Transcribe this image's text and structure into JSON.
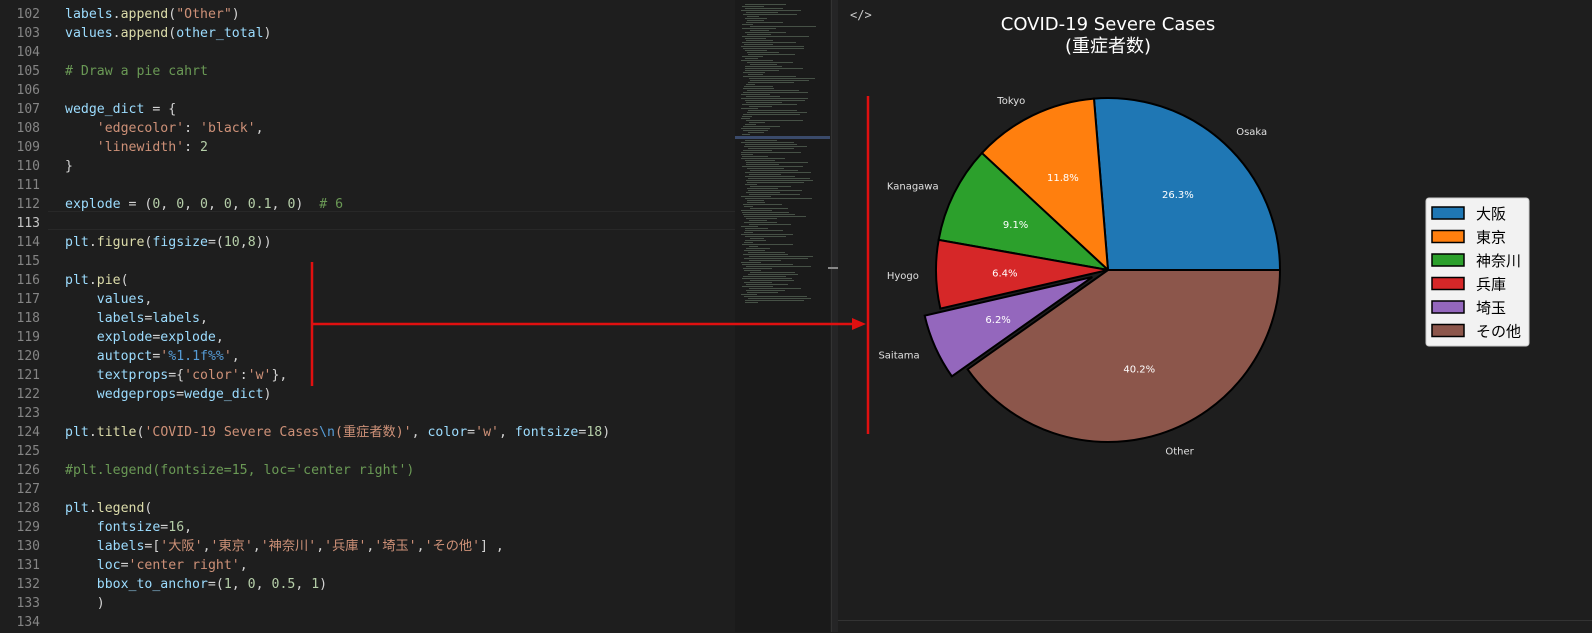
{
  "editor": {
    "lines": [
      {
        "num": "102",
        "tokens": [
          [
            "vr",
            "labels"
          ],
          [
            "pn",
            "."
          ],
          [
            "fn",
            "append"
          ],
          [
            "pn",
            "("
          ],
          [
            "st",
            "\"Other\""
          ],
          [
            "pn",
            ")"
          ]
        ]
      },
      {
        "num": "103",
        "tokens": [
          [
            "vr",
            "values"
          ],
          [
            "pn",
            "."
          ],
          [
            "fn",
            "append"
          ],
          [
            "pn",
            "("
          ],
          [
            "vr",
            "other_total"
          ],
          [
            "pn",
            ")"
          ]
        ]
      },
      {
        "num": "104",
        "tokens": []
      },
      {
        "num": "105",
        "tokens": [
          [
            "cm",
            "# Draw a pie cahrt"
          ]
        ]
      },
      {
        "num": "106",
        "tokens": []
      },
      {
        "num": "107",
        "tokens": [
          [
            "vr",
            "wedge_dict"
          ],
          [
            "pn",
            " = {"
          ]
        ]
      },
      {
        "num": "108",
        "tokens": [
          [
            "pn",
            "    "
          ],
          [
            "st",
            "'edgecolor'"
          ],
          [
            "pn",
            ": "
          ],
          [
            "st",
            "'black'"
          ],
          [
            "pn",
            ","
          ]
        ]
      },
      {
        "num": "109",
        "tokens": [
          [
            "pn",
            "    "
          ],
          [
            "st",
            "'linewidth'"
          ],
          [
            "pn",
            ": "
          ],
          [
            "nm",
            "2"
          ]
        ]
      },
      {
        "num": "110",
        "tokens": [
          [
            "pn",
            "}"
          ]
        ]
      },
      {
        "num": "111",
        "tokens": []
      },
      {
        "num": "112",
        "tokens": [
          [
            "vr",
            "explode"
          ],
          [
            "pn",
            " = ("
          ],
          [
            "nm",
            "0"
          ],
          [
            "pn",
            ", "
          ],
          [
            "nm",
            "0"
          ],
          [
            "pn",
            ", "
          ],
          [
            "nm",
            "0"
          ],
          [
            "pn",
            ", "
          ],
          [
            "nm",
            "0"
          ],
          [
            "pn",
            ", "
          ],
          [
            "nm",
            "0.1"
          ],
          [
            "pn",
            ", "
          ],
          [
            "nm",
            "0"
          ],
          [
            "pn",
            ")  "
          ],
          [
            "cm",
            "# 6"
          ]
        ]
      },
      {
        "num": "113",
        "tokens": []
      },
      {
        "num": "114",
        "tokens": [
          [
            "vr",
            "plt"
          ],
          [
            "pn",
            "."
          ],
          [
            "fn",
            "figure"
          ],
          [
            "pn",
            "("
          ],
          [
            "vr",
            "figsize"
          ],
          [
            "pn",
            "=("
          ],
          [
            "nm",
            "10"
          ],
          [
            "pn",
            ","
          ],
          [
            "nm",
            "8"
          ],
          [
            "pn",
            "))"
          ]
        ]
      },
      {
        "num": "115",
        "tokens": []
      },
      {
        "num": "116",
        "tokens": [
          [
            "vr",
            "plt"
          ],
          [
            "pn",
            "."
          ],
          [
            "fn",
            "pie"
          ],
          [
            "pn",
            "("
          ]
        ]
      },
      {
        "num": "117",
        "tokens": [
          [
            "pn",
            "    "
          ],
          [
            "vr",
            "values"
          ],
          [
            "pn",
            ","
          ]
        ]
      },
      {
        "num": "118",
        "tokens": [
          [
            "pn",
            "    "
          ],
          [
            "vr",
            "labels"
          ],
          [
            "pn",
            "="
          ],
          [
            "vr",
            "labels"
          ],
          [
            "pn",
            ","
          ]
        ]
      },
      {
        "num": "119",
        "tokens": [
          [
            "pn",
            "    "
          ],
          [
            "vr",
            "explode"
          ],
          [
            "pn",
            "="
          ],
          [
            "vr",
            "explode"
          ],
          [
            "pn",
            ","
          ]
        ]
      },
      {
        "num": "120",
        "tokens": [
          [
            "pn",
            "    "
          ],
          [
            "vr",
            "autopct"
          ],
          [
            "pn",
            "="
          ],
          [
            "st",
            "'"
          ],
          [
            "pc",
            "%1.1f%%"
          ],
          [
            "st",
            "'"
          ],
          [
            "pn",
            ","
          ]
        ]
      },
      {
        "num": "121",
        "tokens": [
          [
            "pn",
            "    "
          ],
          [
            "vr",
            "textprops"
          ],
          [
            "pn",
            "={"
          ],
          [
            "st",
            "'color'"
          ],
          [
            "pn",
            ":"
          ],
          [
            "st",
            "'w'"
          ],
          [
            "pn",
            "},"
          ]
        ]
      },
      {
        "num": "122",
        "tokens": [
          [
            "pn",
            "    "
          ],
          [
            "vr",
            "wedgeprops"
          ],
          [
            "pn",
            "="
          ],
          [
            "vr",
            "wedge_dict"
          ],
          [
            "pn",
            ")"
          ]
        ]
      },
      {
        "num": "123",
        "tokens": []
      },
      {
        "num": "124",
        "tokens": [
          [
            "vr",
            "plt"
          ],
          [
            "pn",
            "."
          ],
          [
            "fn",
            "title"
          ],
          [
            "pn",
            "("
          ],
          [
            "st",
            "'COVID-19 Severe Cases"
          ],
          [
            "pc",
            "\\n"
          ],
          [
            "st",
            "(重症者数)'"
          ],
          [
            "pn",
            ", "
          ],
          [
            "vr",
            "color"
          ],
          [
            "pn",
            "="
          ],
          [
            "st",
            "'w'"
          ],
          [
            "pn",
            ", "
          ],
          [
            "vr",
            "fontsize"
          ],
          [
            "pn",
            "="
          ],
          [
            "nm",
            "18"
          ],
          [
            "pn",
            ")"
          ]
        ]
      },
      {
        "num": "125",
        "tokens": []
      },
      {
        "num": "126",
        "tokens": [
          [
            "cm",
            "#plt.legend(fontsize=15, loc='center right')"
          ]
        ]
      },
      {
        "num": "127",
        "tokens": []
      },
      {
        "num": "128",
        "tokens": [
          [
            "vr",
            "plt"
          ],
          [
            "pn",
            "."
          ],
          [
            "fn",
            "legend"
          ],
          [
            "pn",
            "("
          ]
        ]
      },
      {
        "num": "129",
        "tokens": [
          [
            "pn",
            "    "
          ],
          [
            "vr",
            "fontsize"
          ],
          [
            "pn",
            "="
          ],
          [
            "nm",
            "16"
          ],
          [
            "pn",
            ","
          ]
        ]
      },
      {
        "num": "130",
        "tokens": [
          [
            "pn",
            "    "
          ],
          [
            "vr",
            "labels"
          ],
          [
            "pn",
            "=["
          ],
          [
            "st",
            "'大阪'"
          ],
          [
            "pn",
            ","
          ],
          [
            "st",
            "'東京'"
          ],
          [
            "pn",
            ","
          ],
          [
            "st",
            "'神奈川'"
          ],
          [
            "pn",
            ","
          ],
          [
            "st",
            "'兵庫'"
          ],
          [
            "pn",
            ","
          ],
          [
            "st",
            "'埼玉'"
          ],
          [
            "pn",
            ","
          ],
          [
            "st",
            "'その他'"
          ],
          [
            "pn",
            "] ,"
          ]
        ]
      },
      {
        "num": "131",
        "tokens": [
          [
            "pn",
            "    "
          ],
          [
            "vr",
            "loc"
          ],
          [
            "pn",
            "="
          ],
          [
            "st",
            "'center right'"
          ],
          [
            "pn",
            ","
          ]
        ]
      },
      {
        "num": "132",
        "tokens": [
          [
            "pn",
            "    "
          ],
          [
            "vr",
            "bbox_to_anchor"
          ],
          [
            "pn",
            "=("
          ],
          [
            "nm",
            "1"
          ],
          [
            "pn",
            ", "
          ],
          [
            "nm",
            "0"
          ],
          [
            "pn",
            ", "
          ],
          [
            "nm",
            "0.5"
          ],
          [
            "pn",
            ", "
          ],
          [
            "nm",
            "1"
          ],
          [
            "pn",
            ")"
          ]
        ]
      },
      {
        "num": "133",
        "tokens": [
          [
            "pn",
            "    )"
          ]
        ]
      },
      {
        "num": "134",
        "tokens": []
      }
    ],
    "active_line": "113"
  },
  "panel": {
    "icon": "code-icon",
    "icon_glyph": "</>"
  },
  "chart_data": {
    "type": "pie",
    "title": "COVID-19 Severe Cases",
    "subtitle": "(重症者数)",
    "categories": [
      "Osaka",
      "Tokyo",
      "Kanagawa",
      "Hyogo",
      "Saitama",
      "Other"
    ],
    "values": [
      26.3,
      11.8,
      9.1,
      6.4,
      6.2,
      40.2
    ],
    "pct_labels": [
      "26.3%",
      "11.8%",
      "9.1%",
      "6.4%",
      "6.2%",
      "40.2%"
    ],
    "explode": [
      0,
      0,
      0,
      0,
      0.1,
      0
    ],
    "colors": [
      "#1f77b4",
      "#ff7f0e",
      "#2ca02c",
      "#d62728",
      "#9467bd",
      "#8c564b"
    ],
    "legend": {
      "placement": "center right",
      "entries": [
        "大阪",
        "東京",
        "神奈川",
        "兵庫",
        "埼玉",
        "その他"
      ]
    }
  }
}
